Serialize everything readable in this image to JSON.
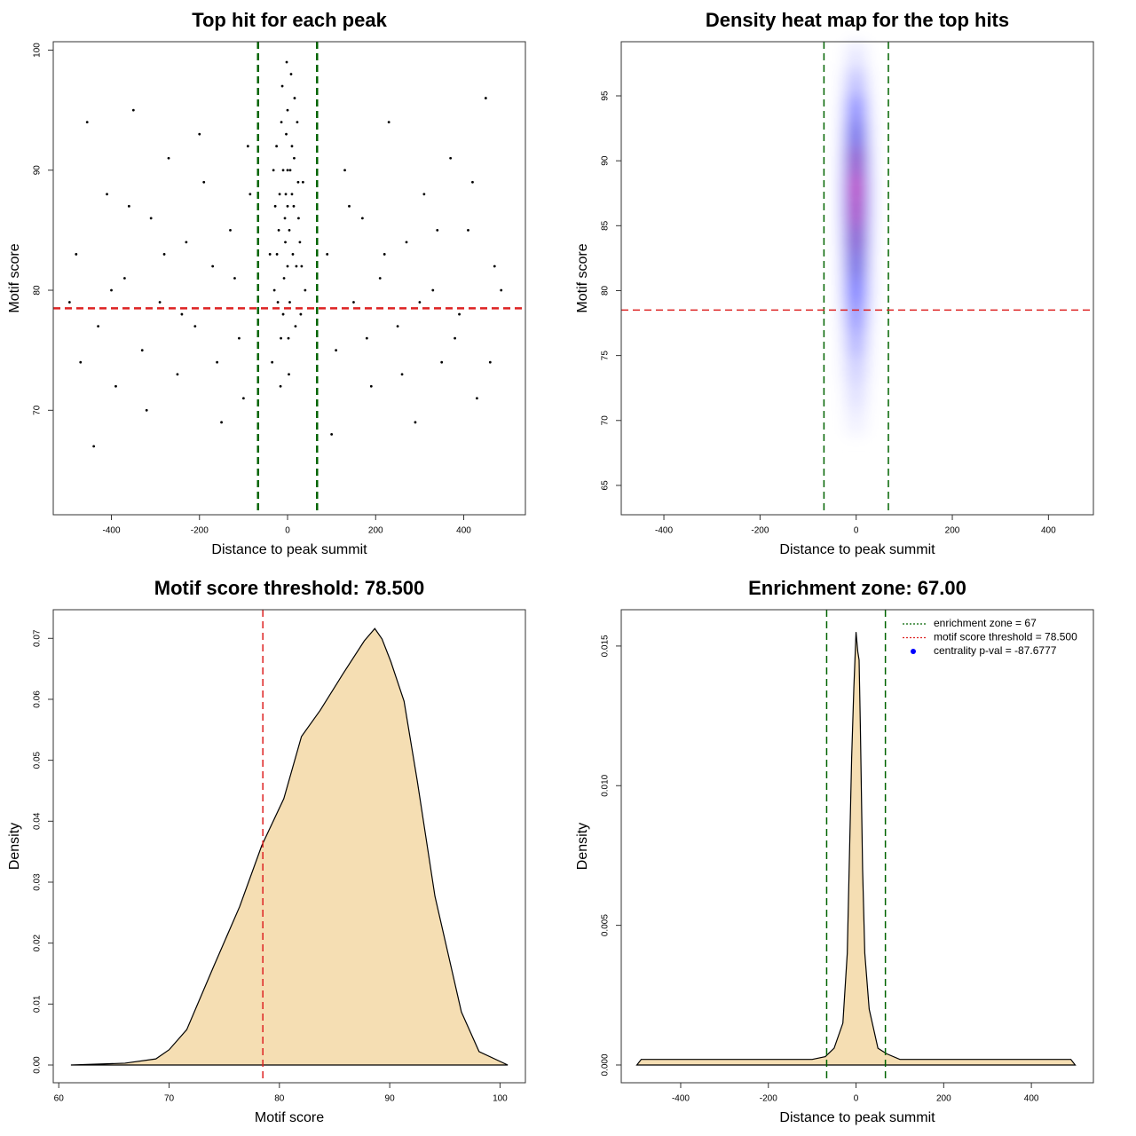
{
  "chart_data": [
    {
      "type": "scatter",
      "title": "Top hit for each peak",
      "x_label": "Distance to peak summit",
      "y_label": "Motif score",
      "x": [
        -480,
        -455,
        -430,
        -410,
        -390,
        -370,
        -350,
        -330,
        -310,
        -290,
        -270,
        -250,
        -230,
        -210,
        -190,
        -170,
        -150,
        -130,
        -110,
        -90,
        -470,
        -440,
        -400,
        -360,
        -320,
        -280,
        -240,
        -200,
        -160,
        -120,
        -85,
        -100,
        90,
        110,
        130,
        150,
        170,
        190,
        210,
        230,
        250,
        270,
        290,
        310,
        330,
        350,
        370,
        390,
        410,
        430,
        450,
        470,
        100,
        140,
        180,
        220,
        260,
        300,
        340,
        380,
        420,
        460,
        485,
        -495,
        -30,
        -20,
        -10,
        0,
        10,
        20,
        30,
        -25,
        -15,
        -5,
        5,
        15,
        25,
        -35,
        35,
        -12,
        8,
        0,
        -8,
        12,
        -18,
        18,
        -3,
        3,
        -22,
        22,
        -40,
        40,
        -6,
        6,
        -14,
        14,
        0,
        -28,
        28,
        -2,
        2,
        -16,
        16,
        -10,
        10,
        -24,
        24,
        0,
        -4,
        4,
        -32,
        32
      ],
      "y": [
        83,
        94,
        77,
        88,
        72,
        81,
        95,
        75,
        86,
        79,
        91,
        73,
        84,
        77,
        89,
        82,
        69,
        85,
        76,
        92,
        74,
        67,
        80,
        87,
        70,
        83,
        78,
        93,
        74,
        81,
        88,
        71,
        83,
        75,
        90,
        79,
        86,
        72,
        81,
        94,
        77,
        84,
        69,
        88,
        80,
        74,
        91,
        78,
        85,
        71,
        96,
        82,
        68,
        87,
        76,
        83,
        73,
        79,
        85,
        76,
        89,
        74,
        80,
        79,
        80,
        85,
        90,
        95,
        88,
        82,
        78,
        92,
        76,
        84,
        79,
        91,
        86,
        74,
        89,
        97,
        98,
        87,
        81,
        83,
        88,
        77,
        93,
        73,
        79,
        94,
        83,
        80,
        86,
        90,
        94,
        87,
        82,
        87,
        84,
        99,
        76,
        72,
        96,
        78,
        92,
        83,
        89,
        90,
        88,
        85,
        90,
        82
      ],
      "color": "#000000",
      "xlim": [
        -532,
        540
      ],
      "ylim": [
        61.3,
        100.7
      ],
      "xticks": [
        -400,
        -200,
        0,
        200,
        400
      ],
      "yticks": [
        70,
        80,
        90,
        100
      ],
      "vlines": [
        -67,
        67
      ],
      "vline_color": "#006400",
      "hline": 78.5,
      "hline_color": "#dd2222"
    },
    {
      "type": "heatmap",
      "title": "Density heat map for the top hits",
      "x_label": "Distance to peak summit",
      "y_label": "Motif score",
      "x": [
        -30,
        -15,
        0,
        15,
        30
      ],
      "y": [
        70,
        72,
        74,
        76,
        78,
        80,
        82,
        84,
        86,
        88,
        90,
        92,
        94,
        96,
        98
      ],
      "z": [
        [
          0,
          0.02,
          0.05,
          0.02,
          0
        ],
        [
          0,
          0.04,
          0.1,
          0.04,
          0
        ],
        [
          0.01,
          0.06,
          0.15,
          0.06,
          0.01
        ],
        [
          0.01,
          0.1,
          0.25,
          0.1,
          0.01
        ],
        [
          0.02,
          0.15,
          0.35,
          0.15,
          0.02
        ],
        [
          0.03,
          0.2,
          0.5,
          0.2,
          0.03
        ],
        [
          0.03,
          0.26,
          0.65,
          0.26,
          0.03
        ],
        [
          0.04,
          0.32,
          0.8,
          0.32,
          0.04
        ],
        [
          0.05,
          0.38,
          0.95,
          0.38,
          0.05
        ],
        [
          0.05,
          0.4,
          1,
          0.4,
          0.05
        ],
        [
          0.04,
          0.34,
          0.85,
          0.34,
          0.04
        ],
        [
          0.03,
          0.24,
          0.6,
          0.24,
          0.03
        ],
        [
          0.02,
          0.16,
          0.4,
          0.16,
          0.02
        ],
        [
          0.01,
          0.08,
          0.2,
          0.08,
          0.01
        ],
        [
          0,
          0.03,
          0.08,
          0.03,
          0
        ]
      ],
      "colors": [
        "#ffffff",
        "#0000ff",
        "#ff0000"
      ],
      "xlim": [
        -488.7,
        493.5
      ],
      "ylim": [
        62.74,
        99.17
      ],
      "xticks": [
        -400,
        -200,
        0,
        200,
        400
      ],
      "yticks": [
        65,
        70,
        75,
        80,
        85,
        90,
        95
      ],
      "vlines": [
        -67,
        67
      ],
      "vline_color": "#006400",
      "hline": 78.5,
      "hline_color": "#dd2222"
    },
    {
      "type": "area",
      "title": "Motif score threshold: 78.500",
      "x_label": "Motif score",
      "y_label": "Density",
      "x": [
        61.1,
        66,
        68.8,
        70,
        71.6,
        74,
        76.4,
        78.4,
        80.4,
        82,
        83.7,
        85.7,
        87.7,
        88.65,
        89.3,
        90.1,
        91.3,
        92.5,
        94.1,
        95.3,
        96.5,
        98.1,
        100.7
      ],
      "y": [
        0,
        0.0003,
        0.001,
        0.0025,
        0.0058,
        0.016,
        0.026,
        0.036,
        0.0437,
        0.0539,
        0.0582,
        0.064,
        0.0696,
        0.0716,
        0.0699,
        0.0662,
        0.0597,
        0.0466,
        0.0277,
        0.0182,
        0.0087,
        0.0022,
        0
      ],
      "color": "#f5deb3",
      "xlim": [
        59.5,
        102.3
      ],
      "ylim": [
        -0.00291,
        0.0747
      ],
      "xticks": [
        60,
        70,
        80,
        90,
        100
      ],
      "yticks": [
        {
          "value": 0,
          "label": "0.00"
        },
        0.01,
        0.02,
        0.03,
        0.04,
        0.05,
        0.06,
        0.07
      ],
      "vlines": [
        78.5
      ],
      "vline_color": "#dd2222"
    },
    {
      "type": "area",
      "title": "Enrichment zone: 67.00",
      "x_label": "Distance to peak summit",
      "y_label": "Density",
      "x": [
        -500,
        -490,
        -400,
        -200,
        -100,
        -70,
        -50,
        -30,
        -20,
        -10,
        -5,
        0,
        4,
        7,
        10,
        15,
        20,
        30,
        50,
        70,
        100,
        400,
        490,
        500
      ],
      "y": [
        0,
        0.0002,
        0.0002,
        0.0002,
        0.0002,
        0.0003,
        0.0006,
        0.0015,
        0.004,
        0.011,
        0.0135,
        0.0155,
        0.0148,
        0.0145,
        0.012,
        0.007,
        0.004,
        0.002,
        0.0006,
        0.0004,
        0.0002,
        0.0002,
        0.0002,
        0
      ],
      "color": "#f5deb3",
      "xlim": [
        -535.6,
        541.5
      ],
      "ylim": [
        -0.000636,
        0.0163
      ],
      "xticks": [
        -400,
        -200,
        0,
        200,
        400
      ],
      "yticks": [
        {
          "value": 0,
          "label": "0.000"
        },
        0.005,
        {
          "value": 0.01,
          "label": "0.010"
        },
        {
          "value": 0.015,
          "label": "0.015"
        }
      ],
      "vlines": [
        -67,
        67
      ],
      "vline_color": "#006400",
      "legend": [
        {
          "label": "enrichment zone = 67",
          "color": "#006400",
          "style": "dotted"
        },
        {
          "label": "motif score threshold = 78.500",
          "color": "#dd2222",
          "style": "dotted"
        },
        {
          "label": "centrality p-val = -87.6777",
          "color": "#0000ff",
          "style": "point"
        }
      ]
    }
  ]
}
